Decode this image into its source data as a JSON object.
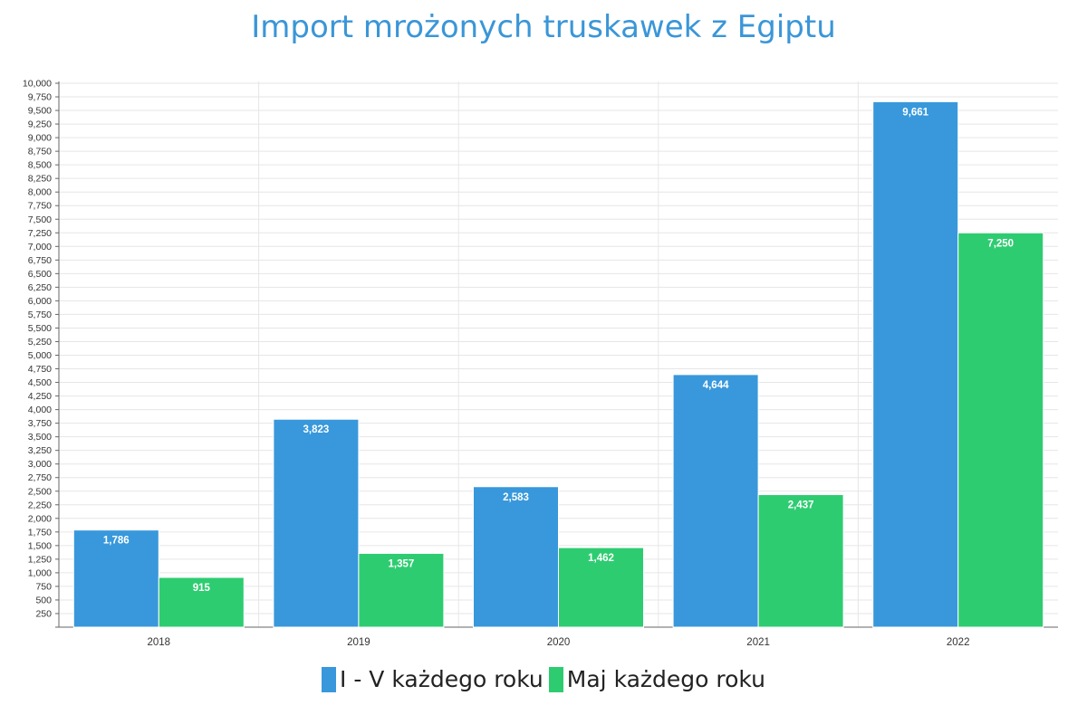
{
  "chart_data": {
    "type": "bar",
    "title": "Import mrożonych truskawek z Egiptu",
    "xlabel": "",
    "ylabel": "",
    "categories": [
      "2018",
      "2019",
      "2020",
      "2021",
      "2022"
    ],
    "series": [
      {
        "name": "I - V każdego roku",
        "color": "#3898db",
        "values": [
          1786,
          3823,
          2583,
          4644,
          9661
        ]
      },
      {
        "name": "Maj każdego roku",
        "color": "#2ecc71",
        "values": [
          915,
          1357,
          1462,
          2437,
          7250
        ]
      }
    ],
    "ylim": [
      0,
      10000
    ],
    "ytick_step": 250,
    "grid": true,
    "legend_position": "bottom",
    "data_labels": true
  }
}
